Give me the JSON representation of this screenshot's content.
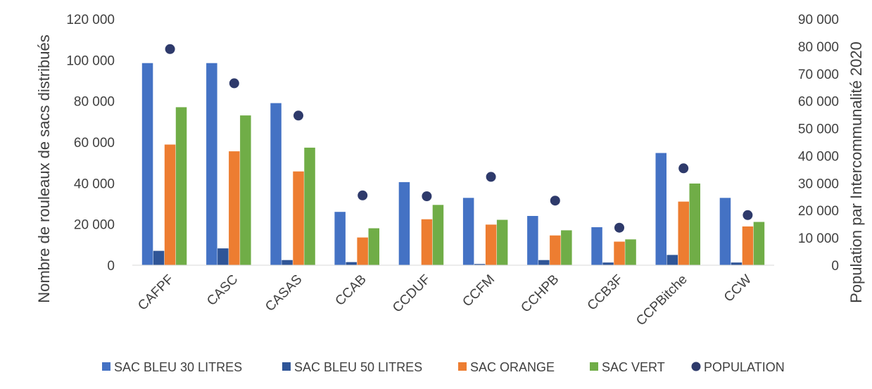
{
  "chart_data": {
    "type": "bar",
    "categories": [
      "CAFPF",
      "CASC",
      "CASAS",
      "CCAB",
      "CCDUF",
      "CCFM",
      "CCHPB",
      "CCB3F",
      "CCPBitche",
      "CCW"
    ],
    "series": [
      {
        "name": "SAC BLEU 30 LITRES",
        "color": "#4472C4",
        "values": [
          98500,
          98500,
          79000,
          26000,
          40500,
          32800,
          24000,
          18500,
          54700,
          32800
        ]
      },
      {
        "name": "SAC BLEU 50 LITRES",
        "color": "#2F5597",
        "values": [
          7000,
          8200,
          2500,
          1500,
          0,
          600,
          2500,
          1300,
          5000,
          1300
        ]
      },
      {
        "name": "SAC ORANGE",
        "color": "#ED7D31",
        "values": [
          58800,
          55500,
          45700,
          13500,
          22400,
          19800,
          14500,
          11500,
          31000,
          18900
        ]
      },
      {
        "name": "SAC VERT",
        "color": "#70AD47",
        "values": [
          77000,
          73000,
          57300,
          18000,
          29400,
          22100,
          17000,
          12600,
          39800,
          21100
        ]
      }
    ],
    "population": {
      "name": "POPULATION",
      "color": "#2E3A6B",
      "values": [
        79000,
        66500,
        54700,
        25500,
        25200,
        32300,
        23600,
        13700,
        35400,
        18300
      ]
    },
    "ylabel": "Nombre de rouleaux de sacs distribués",
    "y2label": "Population par Intercommunalité 2020",
    "ylim": [
      0,
      120000
    ],
    "y2lim": [
      0,
      90000
    ],
    "yticks": [
      "0",
      "20 000",
      "40 000",
      "60 000",
      "80 000",
      "100 000",
      "120 000"
    ],
    "y2ticks": [
      "0",
      "10 000",
      "20 000",
      "30 000",
      "40 000",
      "50 000",
      "60 000",
      "70 000",
      "80 000",
      "90 000"
    ],
    "grid": false,
    "legend_position": "bottom"
  }
}
